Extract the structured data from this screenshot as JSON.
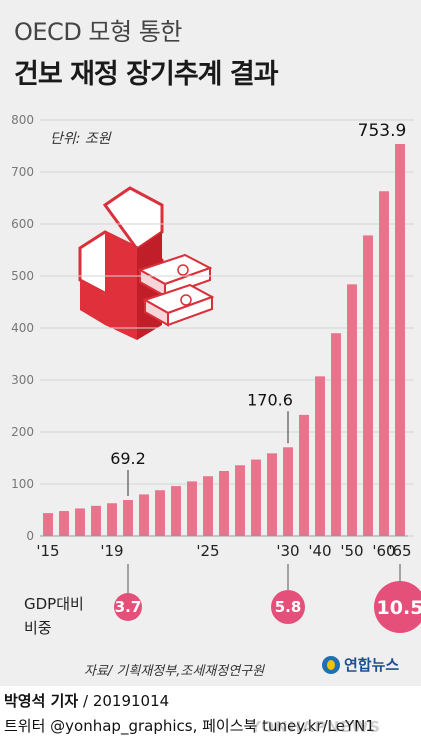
{
  "header": {
    "title_line1": "OECD 모형 통한",
    "title_line2": "건보 재정 장기추계 결과",
    "unit": "단위: 조원"
  },
  "chart_data": {
    "type": "bar",
    "title": "건보 재정 장기추계 결과",
    "ylabel": "",
    "xlabel": "",
    "ylim": [
      0,
      800
    ],
    "yticks": [
      0,
      100,
      200,
      300,
      400,
      500,
      600,
      700,
      800
    ],
    "x": [
      2015,
      2016,
      2017,
      2018,
      2019,
      2020,
      2021,
      2022,
      2023,
      2024,
      2025,
      2026,
      2027,
      2028,
      2029,
      2030,
      2035,
      2040,
      2045,
      2050,
      2055,
      2060,
      2065
    ],
    "values": [
      44,
      48,
      53,
      58,
      63,
      69.2,
      80,
      88,
      96,
      105,
      115,
      125,
      136,
      147,
      159,
      170.6,
      233,
      307,
      390,
      484,
      578,
      663,
      753.9
    ],
    "x_tick_labels": [
      {
        "x": 2015,
        "label": "'15"
      },
      {
        "x": 2019,
        "label": "'19"
      },
      {
        "x": 2025,
        "label": "'25"
      },
      {
        "x": 2030,
        "label": "'30"
      },
      {
        "x": 2040,
        "label": "'40"
      },
      {
        "x": 2050,
        "label": "'50"
      },
      {
        "x": 2060,
        "label": "'60"
      },
      {
        "x": 2065,
        "label": "'65"
      }
    ],
    "annotations": [
      {
        "x": 2020,
        "value": 69.2,
        "label": "69.2"
      },
      {
        "x": 2030,
        "value": 170.6,
        "label": "170.6"
      },
      {
        "x": 2065,
        "value": 753.9,
        "label": "753.9"
      }
    ],
    "gdp_ratio": {
      "label": "GDP대비\n비중",
      "points": [
        {
          "x": 2020,
          "value": 3.7
        },
        {
          "x": 2030,
          "value": 5.8
        },
        {
          "x": 2065,
          "value": 10.5
        }
      ]
    },
    "colors": {
      "bar": "#e8748c",
      "circle": "#e5507a",
      "axis": "#888888"
    }
  },
  "footer": {
    "source": "자료/ 기획재정부,조세재정연구원",
    "logo": "연합뉴스",
    "reporter": "박영석 기자",
    "date": "20191014",
    "social": "트위터 @yonhap_graphics, 페이스북 tuney.kr/LeYN1",
    "watermark": "YONHAPNEWS"
  }
}
